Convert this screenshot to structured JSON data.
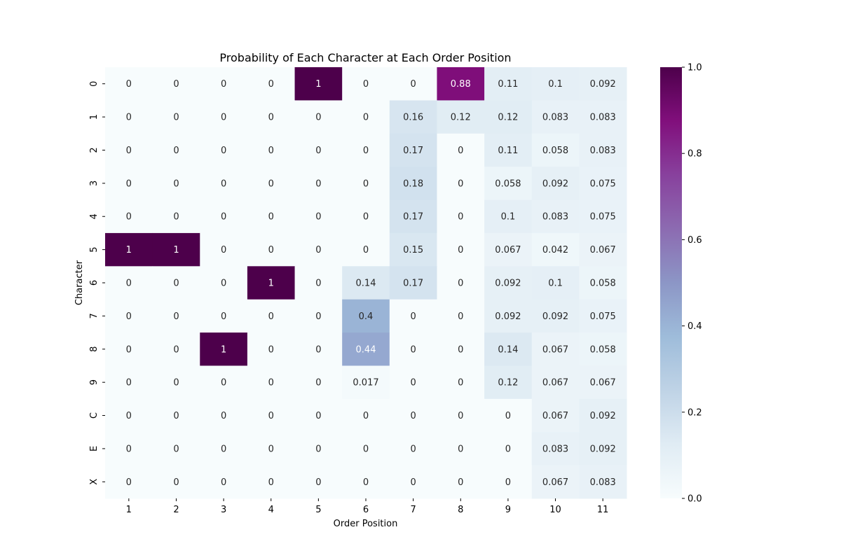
{
  "chart_data": {
    "type": "heatmap",
    "title": "Probability of Each Character at Each Order Position",
    "xlabel": "Order Position",
    "ylabel": "Character",
    "x_categories": [
      "1",
      "2",
      "3",
      "4",
      "5",
      "6",
      "7",
      "8",
      "9",
      "10",
      "11"
    ],
    "y_categories": [
      "0",
      "1",
      "2",
      "3",
      "4",
      "5",
      "6",
      "7",
      "8",
      "9",
      "C",
      "E",
      "X"
    ],
    "values": [
      [
        0,
        0,
        0,
        0,
        1,
        0,
        0,
        0.88,
        0.11,
        0.1,
        0.092
      ],
      [
        0,
        0,
        0,
        0,
        0,
        0,
        0.16,
        0.12,
        0.12,
        0.083,
        0.083
      ],
      [
        0,
        0,
        0,
        0,
        0,
        0,
        0.17,
        0,
        0.11,
        0.058,
        0.083
      ],
      [
        0,
        0,
        0,
        0,
        0,
        0,
        0.18,
        0,
        0.058,
        0.092,
        0.075
      ],
      [
        0,
        0,
        0,
        0,
        0,
        0,
        0.17,
        0,
        0.1,
        0.083,
        0.075
      ],
      [
        1,
        1,
        0,
        0,
        0,
        0,
        0.15,
        0,
        0.067,
        0.042,
        0.067
      ],
      [
        0,
        0,
        0,
        1,
        0,
        0.14,
        0.17,
        0,
        0.092,
        0.1,
        0.058
      ],
      [
        0,
        0,
        0,
        0,
        0,
        0.4,
        0,
        0,
        0.092,
        0.092,
        0.075
      ],
      [
        0,
        0,
        1,
        0,
        0,
        0.44,
        0,
        0,
        0.14,
        0.067,
        0.058
      ],
      [
        0,
        0,
        0,
        0,
        0,
        0.017,
        0,
        0,
        0.12,
        0.067,
        0.067
      ],
      [
        0,
        0,
        0,
        0,
        0,
        0,
        0,
        0,
        0,
        0.067,
        0.092
      ],
      [
        0,
        0,
        0,
        0,
        0,
        0,
        0,
        0,
        0,
        0.083,
        0.092
      ],
      [
        0,
        0,
        0,
        0,
        0,
        0,
        0,
        0,
        0,
        0.067,
        0.083
      ]
    ],
    "colormap": "BuPu",
    "vmin": 0,
    "vmax": 1,
    "colorbar_ticks": [
      "0.0",
      "0.2",
      "0.4",
      "0.6",
      "0.8",
      "1.0"
    ],
    "colorbar_tick_values": [
      0,
      0.2,
      0.4,
      0.6,
      0.8,
      1.0
    ],
    "annotated": true,
    "grid": false,
    "legend": "colorbar-right"
  }
}
